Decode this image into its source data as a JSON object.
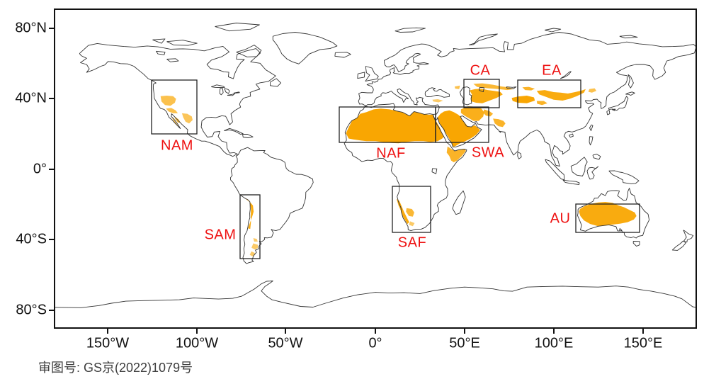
{
  "figure": {
    "footer": "审图号: GS京(2022)1079号",
    "x_axis_labels": [
      "150°W",
      "100°W",
      "50°W",
      "0°",
      "50°E",
      "100°E",
      "150°E"
    ],
    "y_axis_labels": [
      "80°N",
      "40°N",
      "0°",
      "40°S",
      "80°S"
    ],
    "regions": [
      {
        "id": "NAM",
        "label": "NAM",
        "box_lon": [
          -126,
          -100
        ],
        "box_lat": [
          20,
          50
        ]
      },
      {
        "id": "SAM",
        "label": "SAM",
        "box_lon": [
          -76,
          -65
        ],
        "box_lat": [
          -51,
          -14
        ]
      },
      {
        "id": "NAF",
        "label": "NAF",
        "box_lon": [
          -20,
          34
        ],
        "box_lat": [
          15,
          35
        ]
      },
      {
        "id": "SAF",
        "label": "SAF",
        "box_lon": [
          9,
          31
        ],
        "box_lat": [
          -36,
          -10
        ]
      },
      {
        "id": "SWA",
        "label": "SWA",
        "box_lon": [
          34,
          64
        ],
        "box_lat": [
          15,
          35
        ]
      },
      {
        "id": "CA",
        "label": "CA",
        "box_lon": [
          50,
          70
        ],
        "box_lat": [
          36,
          51
        ]
      },
      {
        "id": "EA",
        "label": "EA",
        "box_lon": [
          80,
          115
        ],
        "box_lat": [
          35,
          51
        ]
      },
      {
        "id": "AU",
        "label": "AU",
        "box_lon": [
          112,
          148
        ],
        "box_lat": [
          -36,
          -20
        ]
      }
    ],
    "colors": {
      "desert": "#F9A602",
      "region_label": "#EE1111",
      "coastline": "#333333",
      "frame": "#111111"
    }
  }
}
